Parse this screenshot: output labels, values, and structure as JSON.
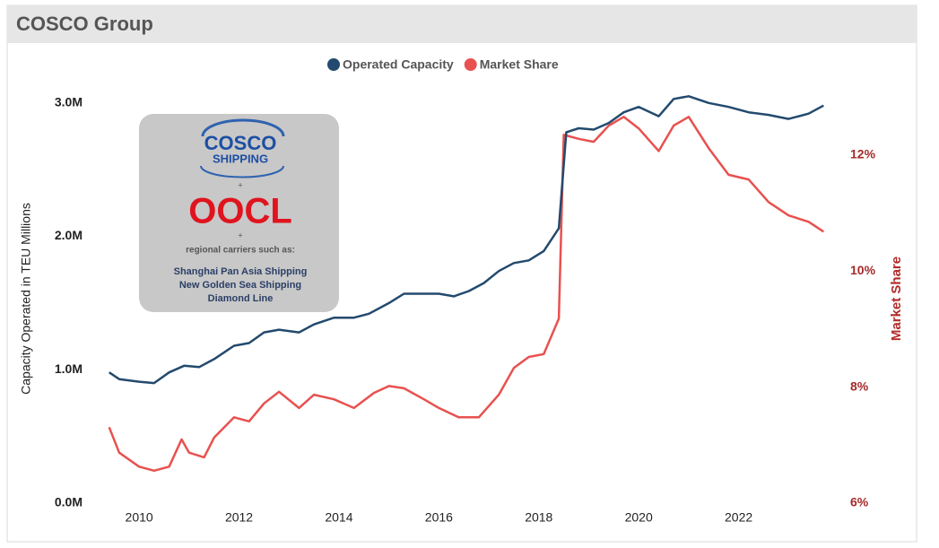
{
  "chart_data": {
    "type": "line",
    "title": "COSCO Group",
    "y_label": "Capacity Operated in TEU Millions",
    "y2_label": "Market Share",
    "xlim": [
      2009.1,
      2024.0
    ],
    "xticks": [
      2010,
      2012,
      2014,
      2016,
      2018,
      2020,
      2022
    ],
    "ylim": [
      0,
      3.2
    ],
    "yticks": [
      {
        "value": 0,
        "label": "0.0M"
      },
      {
        "value": 1,
        "label": "1.0M"
      },
      {
        "value": 2,
        "label": "2.0M"
      },
      {
        "value": 3,
        "label": "3.0M"
      }
    ],
    "y2lim": [
      6,
      13.36
    ],
    "y2ticks": [
      {
        "value": 6,
        "label": "6%"
      },
      {
        "value": 8,
        "label": "8%"
      },
      {
        "value": 10,
        "label": "10%"
      },
      {
        "value": 12,
        "label": "12%"
      }
    ],
    "legend": "top",
    "annotations": [
      "COSCO",
      "SHIPPING",
      "+",
      "OOCL",
      "+",
      "regional carriers such as:",
      "Shanghai Pan Asia Shipping",
      "New Golden Sea Shipping",
      "Diamond Line"
    ],
    "series": [
      {
        "name": "Operated Capacity",
        "color": "#234a6e",
        "axis": "y",
        "x": [
          2009.4,
          2009.6,
          2010.0,
          2010.3,
          2010.6,
          2010.9,
          2011.2,
          2011.5,
          2011.9,
          2012.2,
          2012.5,
          2012.8,
          2013.2,
          2013.5,
          2013.9,
          2014.3,
          2014.6,
          2015.0,
          2015.3,
          2015.7,
          2016.0,
          2016.3,
          2016.6,
          2016.9,
          2017.2,
          2017.5,
          2017.8,
          2018.1,
          2018.4,
          2018.55,
          2018.8,
          2019.1,
          2019.4,
          2019.7,
          2020.0,
          2020.4,
          2020.7,
          2021.0,
          2021.4,
          2021.8,
          2022.2,
          2022.6,
          2023.0,
          2023.4,
          2023.7
        ],
        "values": [
          0.98,
          0.93,
          0.91,
          0.9,
          0.98,
          1.03,
          1.02,
          1.08,
          1.18,
          1.2,
          1.28,
          1.3,
          1.28,
          1.34,
          1.39,
          1.39,
          1.42,
          1.5,
          1.57,
          1.57,
          1.57,
          1.55,
          1.59,
          1.65,
          1.74,
          1.8,
          1.82,
          1.89,
          2.06,
          2.78,
          2.81,
          2.8,
          2.85,
          2.93,
          2.97,
          2.9,
          3.03,
          3.05,
          3.0,
          2.97,
          2.93,
          2.91,
          2.88,
          2.92,
          2.98
        ]
      },
      {
        "name": "Market Share",
        "color": "#e8514f",
        "axis": "y2",
        "x": [
          2009.4,
          2009.6,
          2010.0,
          2010.3,
          2010.6,
          2010.85,
          2011.0,
          2011.3,
          2011.5,
          2011.9,
          2012.2,
          2012.5,
          2012.8,
          2013.2,
          2013.5,
          2013.9,
          2014.3,
          2014.7,
          2015.0,
          2015.3,
          2015.7,
          2016.0,
          2016.4,
          2016.8,
          2017.2,
          2017.5,
          2017.8,
          2018.1,
          2018.4,
          2018.5,
          2018.8,
          2019.1,
          2019.4,
          2019.7,
          2020.0,
          2020.4,
          2020.7,
          2021.0,
          2021.4,
          2021.8,
          2022.2,
          2022.6,
          2023.0,
          2023.4,
          2023.7
        ],
        "values": [
          7.31,
          6.87,
          6.63,
          6.56,
          6.63,
          7.1,
          6.87,
          6.79,
          7.13,
          7.48,
          7.41,
          7.72,
          7.92,
          7.64,
          7.87,
          7.79,
          7.64,
          7.9,
          8.02,
          7.98,
          7.79,
          7.64,
          7.48,
          7.48,
          7.87,
          8.33,
          8.52,
          8.57,
          9.18,
          12.35,
          12.28,
          12.23,
          12.51,
          12.66,
          12.46,
          12.07,
          12.51,
          12.66,
          12.12,
          11.66,
          11.58,
          11.19,
          10.96,
          10.85,
          10.68
        ]
      }
    ]
  }
}
